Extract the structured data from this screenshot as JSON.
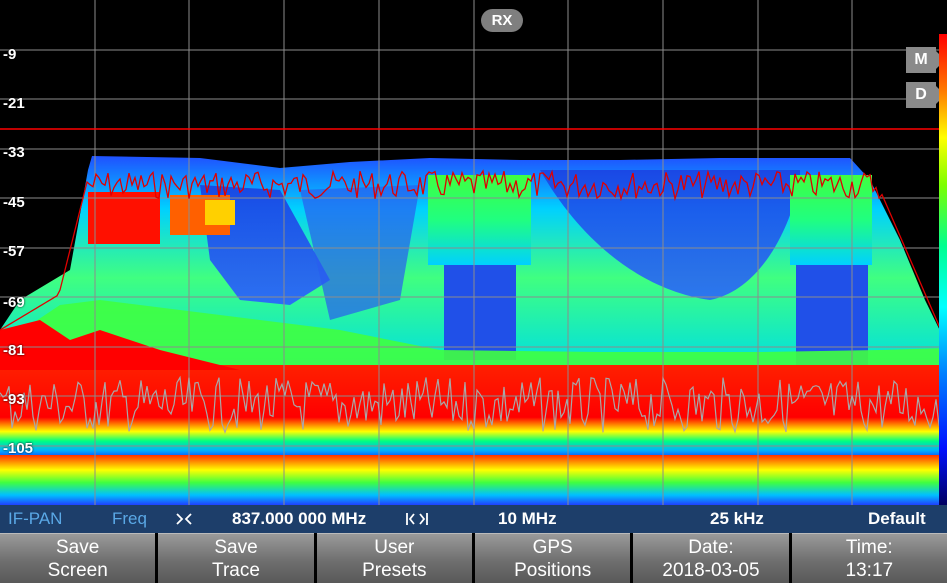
{
  "display": {
    "rx_badge": "RX",
    "level_labels": [
      "-9",
      "-21",
      "-33",
      "-45",
      "-57",
      "-69",
      "-81",
      "-93",
      "-105"
    ],
    "marker_m": "M",
    "marker_d": "D",
    "colors": {
      "background": "#000000",
      "grid": "#8c8c8c",
      "threshold_line": "#ff0000",
      "trace_max": "#e00000",
      "trace_min": "#a0a0a0"
    }
  },
  "status": {
    "mode": "IF-PAN",
    "param": "Freq",
    "center_icon": "center-frequency-icon",
    "frequency": "837.000 000 MHz",
    "span_icon": "span-icon",
    "span": "10 MHz",
    "step": "25 kHz",
    "preset": "Default",
    "colors": {
      "bar": "#1d3e6a",
      "mode": "#5aa8e6"
    }
  },
  "softkeys": [
    {
      "line1": "Save",
      "line2": "Screen"
    },
    {
      "line1": "Save",
      "line2": "Trace"
    },
    {
      "line1": "User",
      "line2": "Presets"
    },
    {
      "line1": "GPS",
      "line2": "Positions"
    },
    {
      "line1": "Date:",
      "line2": "2018-03-05"
    },
    {
      "line1": "Time:",
      "line2": "13:17"
    }
  ]
}
